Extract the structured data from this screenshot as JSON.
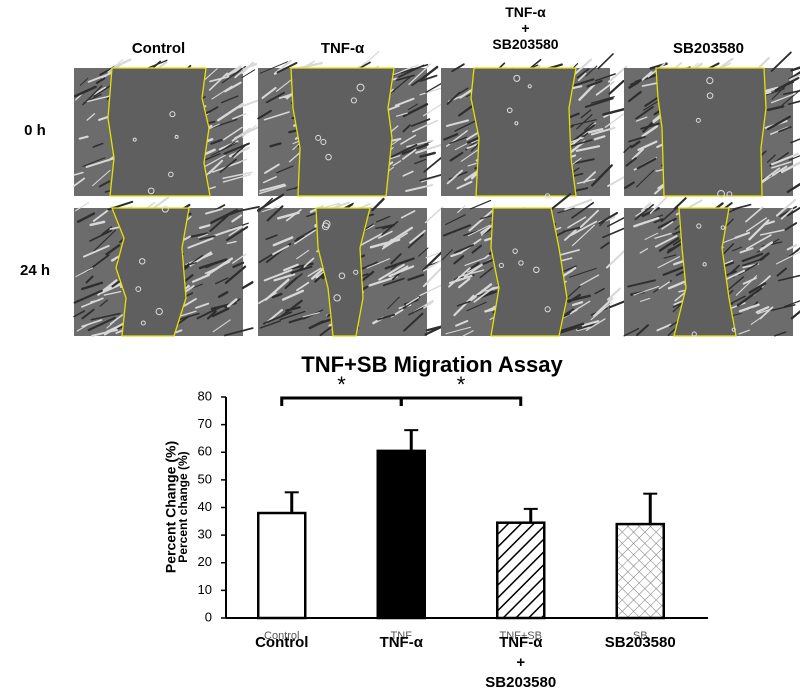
{
  "panel": {
    "columns": [
      "Control",
      "TNF-α",
      "TNF-α\n+\nSB203580",
      "SB203580"
    ],
    "rows": [
      "0 h",
      "24 h"
    ]
  },
  "chart_data": {
    "type": "bar",
    "title": "TNF+SB Migration Assay",
    "y_label": "Percent Change (%)",
    "y_label_overlay": "Percent change (%)",
    "categories": [
      "Control",
      "TNF-α",
      "TNF-α\n+\nSB203580",
      "SB203580"
    ],
    "category_overlays": [
      "Control",
      "TNF",
      "TNF+SB",
      "SB"
    ],
    "values": [
      38,
      60.5,
      34.5,
      34
    ],
    "errors": [
      7.5,
      7.5,
      5,
      11
    ],
    "fills": [
      "white",
      "black",
      "hatch",
      "crosshatch"
    ],
    "ylim": [
      0,
      80
    ],
    "yticks": [
      0,
      10,
      20,
      30,
      40,
      50,
      60,
      70,
      80
    ],
    "annotations": [
      "*",
      "*"
    ]
  }
}
